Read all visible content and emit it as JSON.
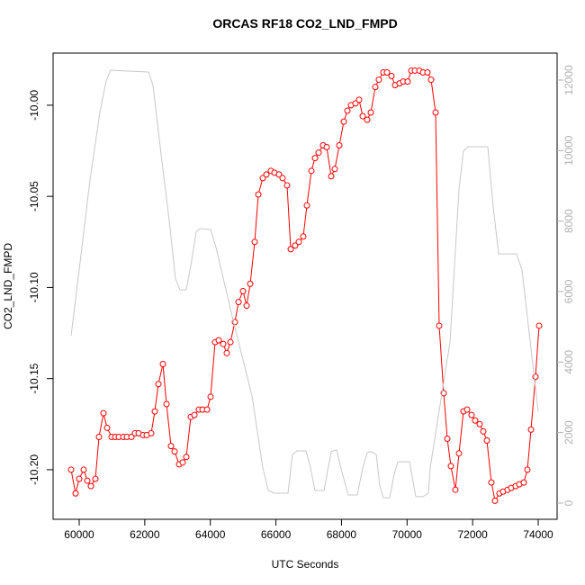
{
  "chart_data": {
    "type": "line",
    "title": "ORCAS RF18 CO2_LND_FMPD",
    "xlabel": "UTC Seconds",
    "ylabel": "CO2_LND_FMPD",
    "xlim": [
      59204,
      74576
    ],
    "ylim": [
      -10.2272,
      -9.9714
    ],
    "y2lim": [
      -460,
      12766
    ],
    "xticks": [
      60000,
      62000,
      64000,
      66000,
      68000,
      70000,
      72000,
      74000
    ],
    "yticks": [
      {
        "value": -10.2,
        "label": "-10.20"
      },
      -10.15,
      {
        "value": -10.1,
        "label": "-10.10"
      },
      -10.05,
      {
        "value": -10.0,
        "label": "-10.00"
      }
    ],
    "y2ticks": [
      0,
      2000,
      4000,
      6000,
      8000,
      10000,
      12000
    ],
    "y2color": "#b0b0b0",
    "series": [
      {
        "name": "CO2_LND_FMPD",
        "color": "#ff0000",
        "marker": "circle",
        "x": [
          59753,
          59890,
          60000,
          60137,
          60247,
          60357,
          60494,
          60604,
          60741,
          60851,
          60988,
          61098,
          61208,
          61345,
          61455,
          61592,
          61702,
          61812,
          61949,
          62059,
          62196,
          62306,
          62416,
          62553,
          62663,
          62800,
          62910,
          63047,
          63157,
          63267,
          63404,
          63514,
          63651,
          63761,
          63898,
          64008,
          64145,
          64255,
          64392,
          64502,
          64612,
          64749,
          64859,
          64996,
          65106,
          65216,
          65353,
          65463,
          65600,
          65710,
          65847,
          65957,
          66094,
          66204,
          66341,
          66451,
          66588,
          66698,
          66835,
          66945,
          67082,
          67192,
          67302,
          67439,
          67549,
          67686,
          67796,
          67933,
          68070,
          68180,
          68290,
          68427,
          68537,
          68647,
          68784,
          68894,
          69031,
          69141,
          69278,
          69388,
          69525,
          69635,
          69772,
          69882,
          70019,
          70129,
          70239,
          70376,
          70486,
          70623,
          70733,
          70870,
          70980,
          71117,
          71227,
          71337,
          71474,
          71584,
          71721,
          71831,
          71968,
          72078,
          72215,
          72325,
          72435,
          72572,
          72682,
          72819,
          72929,
          73066,
          73176,
          73313,
          73423,
          73560,
          73670,
          73780,
          73917,
          74027
        ],
        "values": [
          -10.2,
          -10.213,
          -10.205,
          -10.2,
          -10.206,
          -10.209,
          -10.205,
          -10.182,
          -10.169,
          -10.177,
          -10.182,
          -10.182,
          -10.182,
          -10.182,
          -10.182,
          -10.182,
          -10.18,
          -10.18,
          -10.181,
          -10.181,
          -10.18,
          -10.168,
          -10.153,
          -10.142,
          -10.164,
          -10.187,
          -10.19,
          -10.197,
          -10.196,
          -10.193,
          -10.171,
          -10.17,
          -10.167,
          -10.167,
          -10.167,
          -10.16,
          -10.13,
          -10.129,
          -10.131,
          -10.136,
          -10.13,
          -10.119,
          -10.108,
          -10.102,
          -10.11,
          -10.098,
          -10.075,
          -10.049,
          -10.04,
          -10.038,
          -10.036,
          -10.037,
          -10.038,
          -10.04,
          -10.044,
          -10.079,
          -10.077,
          -10.075,
          -10.072,
          -10.055,
          -10.036,
          -10.029,
          -10.026,
          -10.022,
          -10.023,
          -10.039,
          -10.035,
          -10.022,
          -10.009,
          -10.003,
          -10.0,
          -9.999,
          -9.997,
          -10.006,
          -10.008,
          -10.004,
          -9.99,
          -9.986,
          -9.982,
          -9.982,
          -9.984,
          -9.989,
          -9.988,
          -9.987,
          -9.987,
          -9.981,
          -9.981,
          -9.981,
          -9.982,
          -9.982,
          -9.986,
          -10.004,
          -10.121,
          -10.158,
          -10.183,
          -10.198,
          -10.211,
          -10.191,
          -10.168,
          -10.167,
          -10.17,
          -10.173,
          -10.175,
          -10.179,
          -10.184,
          -10.207,
          -10.217,
          -10.213,
          -10.212,
          -10.211,
          -10.21,
          -10.209,
          -10.208,
          -10.207,
          -10.2,
          -10.178,
          -10.149,
          -10.121
        ]
      },
      {
        "color": "#c8c8c8",
        "axis": "y2",
        "x": [
          59753,
          60000,
          60329,
          60631,
          60823,
          60960,
          62114,
          62251,
          62526,
          62745,
          62937,
          63075,
          63267,
          63404,
          63569,
          63679,
          64008,
          64173,
          64722,
          65271,
          65600,
          65765,
          65957,
          66369,
          66506,
          66643,
          66918,
          67055,
          67192,
          67467,
          67686,
          67851,
          68016,
          68208,
          68482,
          68647,
          68784,
          68894,
          69059,
          69168,
          69278,
          69470,
          69608,
          69718,
          70074,
          70267,
          70486,
          70651,
          70706,
          71310,
          71584,
          71721,
          71859,
          72463,
          72627,
          72792,
          73341,
          73506,
          74000
        ],
        "values": [
          4750,
          6615,
          9170,
          11085,
          11980,
          12280,
          12230,
          11850,
          9680,
          8020,
          6360,
          6050,
          6050,
          6740,
          7690,
          7790,
          7760,
          7250,
          5080,
          3040,
          1000,
          360,
          280,
          280,
          1380,
          1480,
          1480,
          1000,
          360,
          360,
          1460,
          1510,
          870,
          230,
          230,
          1000,
          1430,
          1460,
          1380,
          490,
          150,
          150,
          820,
          1170,
          1170,
          180,
          180,
          280,
          1000,
          4570,
          8910,
          9990,
          10110,
          10110,
          8400,
          7070,
          7070,
          6610,
          2600
        ]
      }
    ]
  }
}
